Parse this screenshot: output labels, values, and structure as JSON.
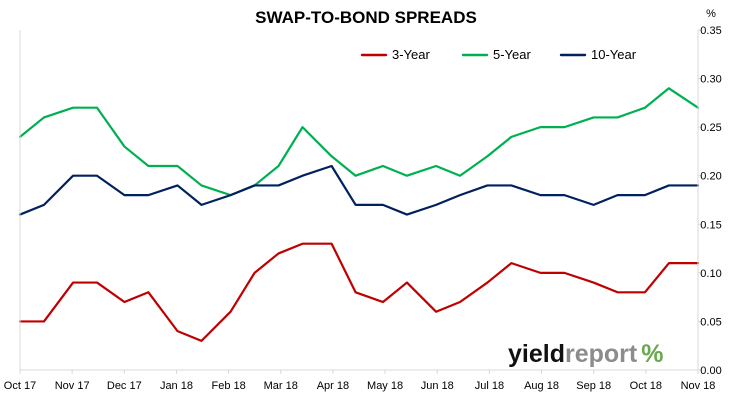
{
  "chart_data": {
    "type": "line",
    "title": "SWAP-TO-BOND SPREADS",
    "y_unit": "%",
    "ylim": [
      0,
      0.35
    ],
    "y_ticks": [
      "0.00",
      "0.05",
      "0.10",
      "0.15",
      "0.20",
      "0.25",
      "0.30",
      "0.35"
    ],
    "x_tick_labels": [
      "Oct 17",
      "Nov 17",
      "Dec 17",
      "Jan 18",
      "Feb 18",
      "Mar 18",
      "Apr 18",
      "May 18",
      "Jun 18",
      "Jul 18",
      "Aug 18",
      "Sep 18",
      "Oct 18",
      "Nov 18"
    ],
    "x": [
      "2017-10-01",
      "2017-10-15",
      "2017-11-01",
      "2017-11-15",
      "2017-12-01",
      "2017-12-15",
      "2018-01-01",
      "2018-01-15",
      "2018-02-01",
      "2018-02-15",
      "2018-03-01",
      "2018-03-15",
      "2018-04-01",
      "2018-04-15",
      "2018-05-01",
      "2018-05-15",
      "2018-06-01",
      "2018-06-15",
      "2018-07-01",
      "2018-07-15",
      "2018-08-01",
      "2018-08-15",
      "2018-09-01",
      "2018-09-15",
      "2018-10-01",
      "2018-10-15",
      "2018-11-01"
    ],
    "grid": false,
    "legend_position": "top-right",
    "series": [
      {
        "name": "3-Year",
        "color": "#c00000",
        "values": [
          0.05,
          0.05,
          0.09,
          0.09,
          0.07,
          0.08,
          0.04,
          0.03,
          0.06,
          0.1,
          0.12,
          0.13,
          0.13,
          0.08,
          0.07,
          0.09,
          0.06,
          0.07,
          0.09,
          0.11,
          0.1,
          0.1,
          0.09,
          0.08,
          0.08,
          0.11,
          0.11
        ]
      },
      {
        "name": "5-Year",
        "color": "#00b050",
        "values": [
          0.24,
          0.26,
          0.27,
          0.27,
          0.23,
          0.21,
          0.21,
          0.19,
          0.18,
          0.19,
          0.21,
          0.25,
          0.22,
          0.2,
          0.21,
          0.2,
          0.21,
          0.2,
          0.22,
          0.24,
          0.25,
          0.25,
          0.26,
          0.26,
          0.27,
          0.29,
          0.27
        ]
      },
      {
        "name": "10-Year",
        "color": "#002060",
        "values": [
          0.16,
          0.17,
          0.2,
          0.2,
          0.18,
          0.18,
          0.19,
          0.17,
          0.18,
          0.19,
          0.19,
          0.2,
          0.21,
          0.17,
          0.17,
          0.16,
          0.17,
          0.18,
          0.19,
          0.19,
          0.18,
          0.18,
          0.17,
          0.18,
          0.18,
          0.19,
          0.19
        ]
      }
    ],
    "watermark": {
      "text_a": "yield",
      "text_b": "report",
      "symbol": "%",
      "color_a": "#111111",
      "color_b": "#8c8c8c",
      "color_symbol": "#6aa84f"
    },
    "axis_color": "#d9d9d9"
  }
}
